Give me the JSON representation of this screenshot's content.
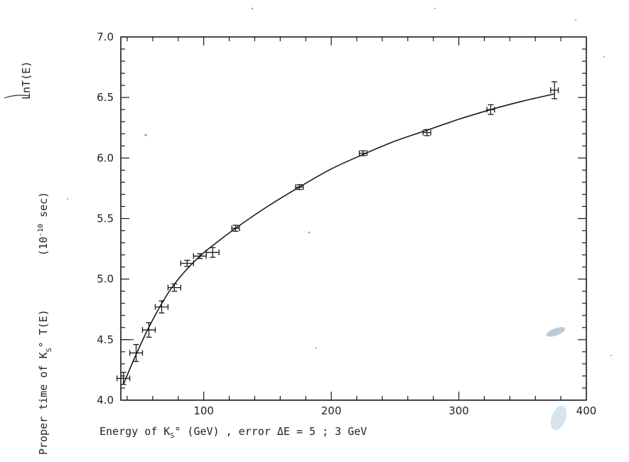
{
  "chart_data": {
    "type": "scatter",
    "title": "",
    "xlabel": "Energy of K",
    "xlabel_sub": "S",
    "xlabel_tail": "°   (GeV)  ,  error  ΔE = 5 ; 3 GeV",
    "ylabel_main": "Proper time of K",
    "ylabel_sub": "S",
    "ylabel_tail": "° T(E)",
    "ylabel_units": "(10",
    "ylabel_units_exp": "-10",
    "ylabel_units_tail": "  sec)",
    "ylabel_ln": "LnT(E)",
    "xlim": [
      35,
      400
    ],
    "ylim": [
      4.0,
      7.0
    ],
    "x_ticks": [
      100,
      200,
      300,
      400
    ],
    "y_ticks": [
      "4.0",
      "4.5",
      "5.0",
      "5.5",
      "6.0",
      "6.5",
      "7.0"
    ],
    "grid": false,
    "series": [
      {
        "points": [
          {
            "x": 37,
            "y": 4.18,
            "xerr": 5,
            "yerr": 0.05
          },
          {
            "x": 47,
            "y": 4.39,
            "xerr": 5,
            "yerr": 0.07
          },
          {
            "x": 57,
            "y": 4.58,
            "xerr": 5,
            "yerr": 0.06
          },
          {
            "x": 67,
            "y": 4.77,
            "xerr": 5,
            "yerr": 0.05
          },
          {
            "x": 77,
            "y": 4.93,
            "xerr": 5,
            "yerr": 0.03
          },
          {
            "x": 87,
            "y": 5.13,
            "xerr": 5,
            "yerr": 0.025
          },
          {
            "x": 97,
            "y": 5.19,
            "xerr": 5,
            "yerr": 0.02
          },
          {
            "x": 107,
            "y": 5.22,
            "xerr": 5,
            "yerr": 0.04
          },
          {
            "x": 125,
            "y": 5.42,
            "xerr": 3,
            "yerr": 0.025
          },
          {
            "x": 175,
            "y": 5.76,
            "xerr": 3,
            "yerr": 0.02
          },
          {
            "x": 225,
            "y": 6.04,
            "xerr": 3,
            "yerr": 0.02
          },
          {
            "x": 275,
            "y": 6.21,
            "xerr": 3,
            "yerr": 0.025
          },
          {
            "x": 325,
            "y": 6.4,
            "xerr": 3,
            "yerr": 0.04
          },
          {
            "x": 375,
            "y": 6.56,
            "xerr": 3,
            "yerr": 0.07
          }
        ]
      }
    ],
    "fit_curve": {
      "x": [
        37,
        45,
        55,
        65,
        75,
        85,
        95,
        105,
        125,
        150,
        175,
        200,
        225,
        250,
        275,
        300,
        325,
        350,
        375
      ],
      "y": [
        4.13,
        4.33,
        4.56,
        4.76,
        4.93,
        5.06,
        5.17,
        5.26,
        5.42,
        5.6,
        5.76,
        5.91,
        6.03,
        6.14,
        6.23,
        6.32,
        6.4,
        6.47,
        6.53
      ]
    },
    "box_4_5_inset": true
  }
}
